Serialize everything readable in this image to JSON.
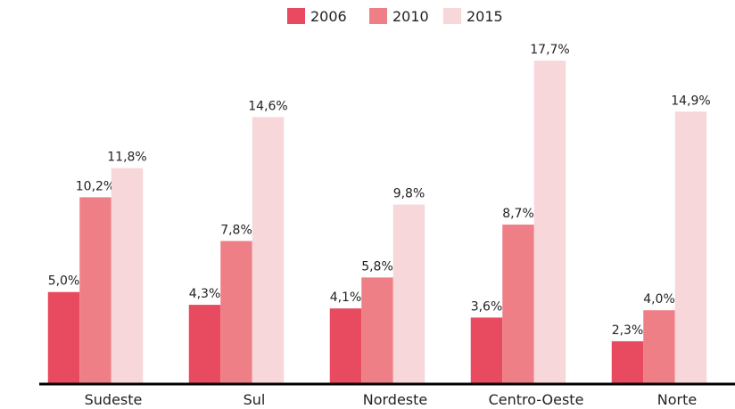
{
  "chart_data": {
    "type": "bar",
    "categories": [
      "Sudeste",
      "Sul",
      "Nordeste",
      "Centro-Oeste",
      "Norte"
    ],
    "series": [
      {
        "name": "2006",
        "color": "#e84a5f",
        "values": [
          5.0,
          4.3,
          4.1,
          3.6,
          2.3
        ],
        "value_labels": [
          "5,0%",
          "4,3%",
          "4,1%",
          "3,6%",
          "2,3%"
        ]
      },
      {
        "name": "2010",
        "color": "#ee7f86",
        "values": [
          10.2,
          7.8,
          5.8,
          8.7,
          4.0
        ],
        "value_labels": [
          "10,2%",
          "7,8%",
          "5,8%",
          "8,7%",
          "4,0%"
        ]
      },
      {
        "name": "2015",
        "color": "#f8d7da",
        "values": [
          11.8,
          14.6,
          9.8,
          17.7,
          14.9
        ],
        "value_labels": [
          "11,8%",
          "14,6%",
          "9,8%",
          "17,7%",
          "14,9%"
        ]
      }
    ],
    "legend": "top"
  }
}
